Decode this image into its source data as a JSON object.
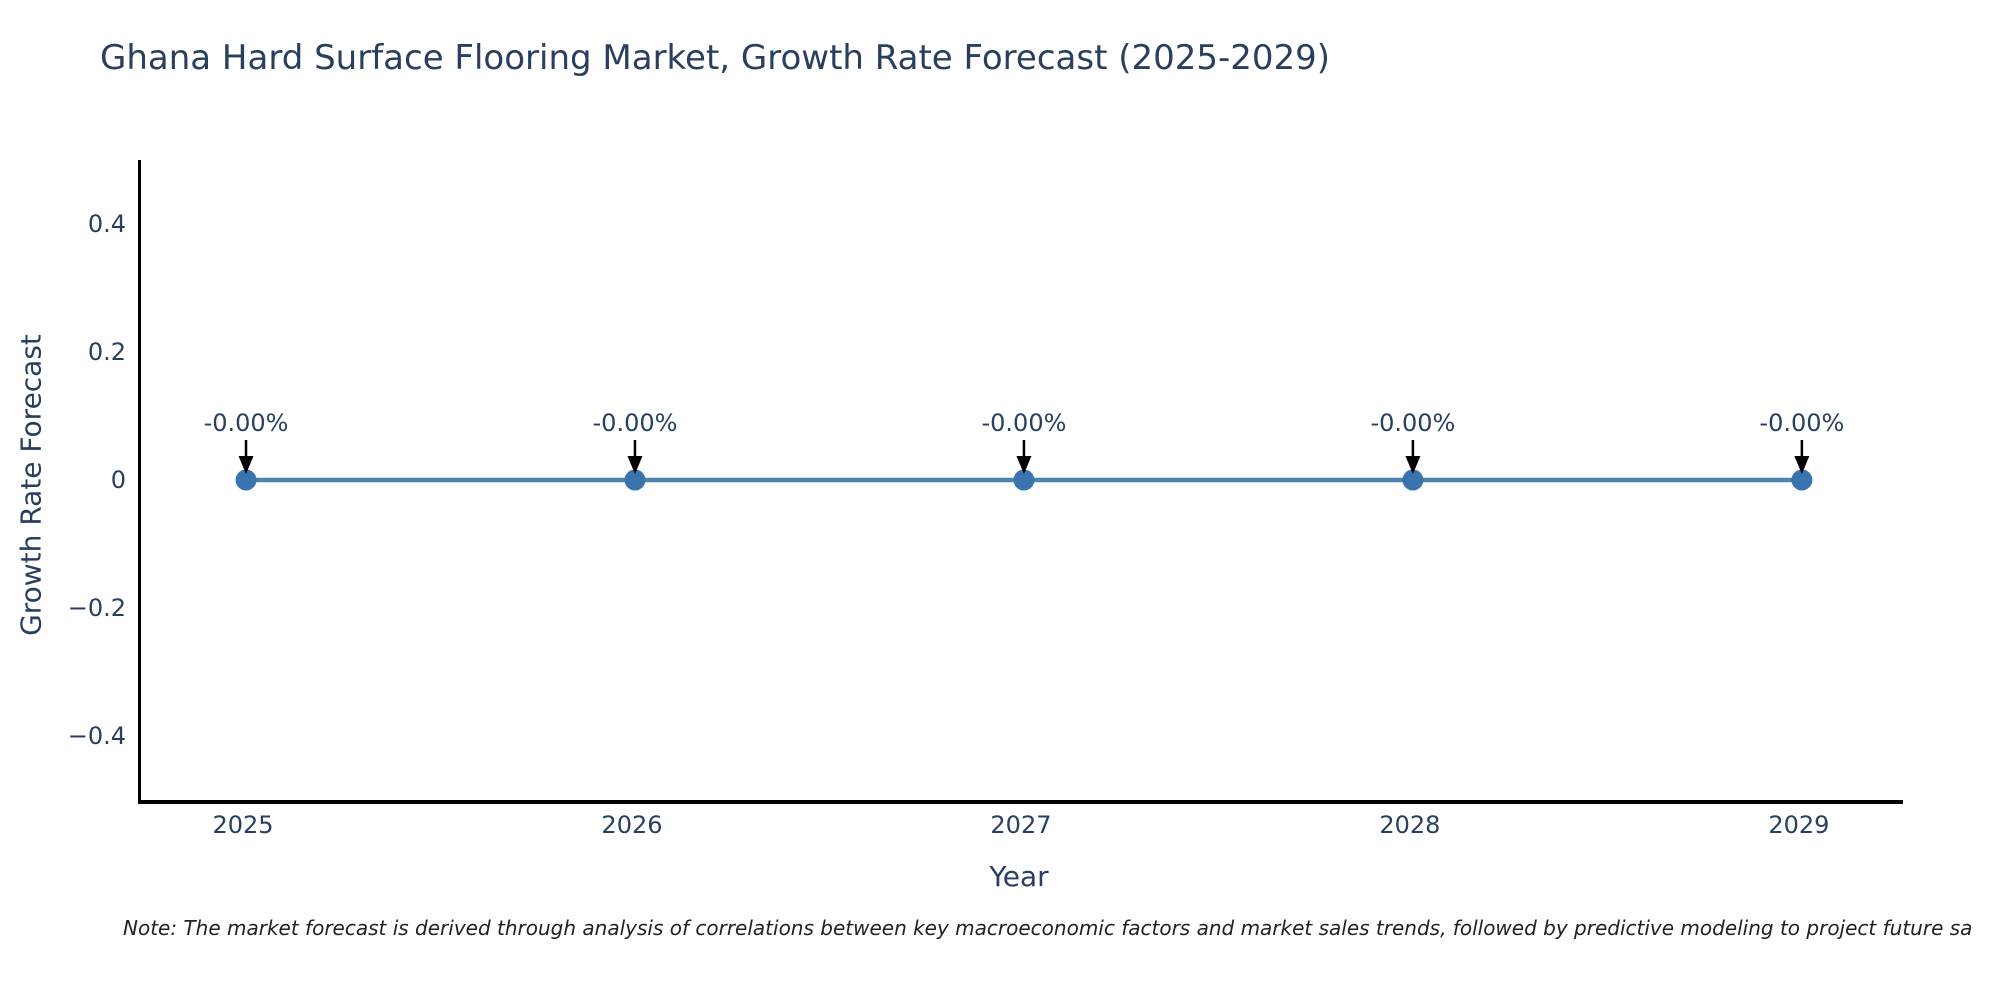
{
  "figure": {
    "note": "Note: The market forecast is derived through analysis of correlations between key macroeconomic factors and market sales trends, followed by predictive modeling to project future sa"
  },
  "chart_data": {
    "type": "line",
    "title": "Ghana Hard Surface Flooring Market, Growth Rate Forecast (2025-2029)",
    "xlabel": "Year",
    "ylabel": "Growth Rate Forecast",
    "categories": [
      "2025",
      "2026",
      "2027",
      "2028",
      "2029"
    ],
    "series": [
      {
        "name": "Growth Rate Forecast",
        "values": [
          0,
          0,
          0,
          0,
          0
        ]
      }
    ],
    "point_labels": [
      "-0.00%",
      "-0.00%",
      "-0.00%",
      "-0.00%",
      "-0.00%"
    ],
    "xlim": [
      2024.73,
      2029.26
    ],
    "ylim": [
      -0.5,
      0.5
    ],
    "yticks": [
      0.4,
      0.2,
      0,
      -0.2,
      -0.4
    ],
    "ytick_labels": [
      "0.4",
      "0.2",
      "0",
      "−0.2",
      "−0.4"
    ],
    "grid": false,
    "legend": "none",
    "colors": {
      "line": "#4d82ad",
      "marker": "#3a74ae",
      "annotation_text": "#2a3f5f",
      "annotation_arrow": "#000000",
      "axis_line": "#000000",
      "tick_text": "#2a3f5f",
      "title_text": "#2a3f5f",
      "note_text": "#222222",
      "background": "#ffffff"
    }
  }
}
